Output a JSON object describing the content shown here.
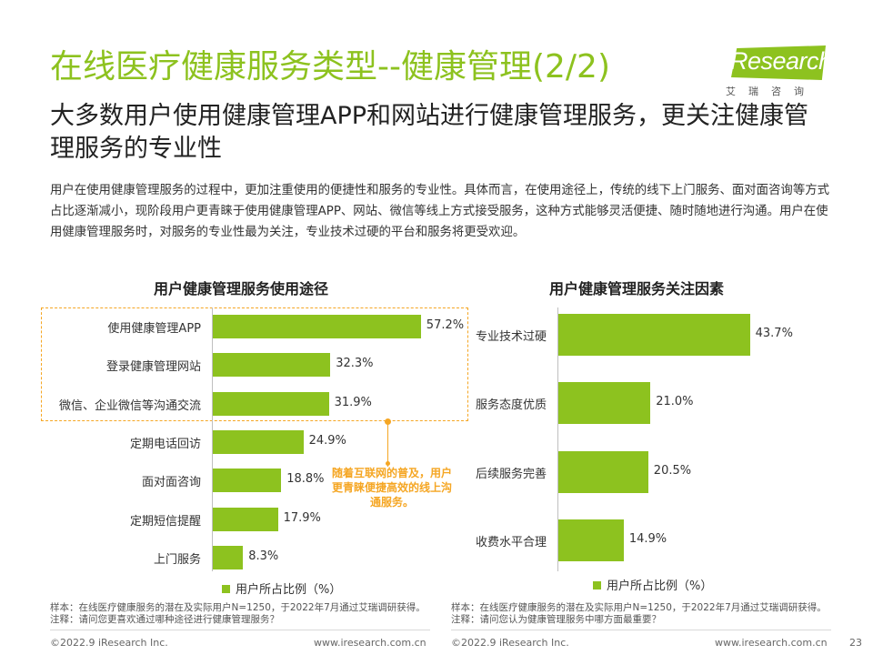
{
  "header": {
    "title": "在线医疗健康服务类型--健康管理(2/2)",
    "subtitle": "大多数用户使用健康管理APP和网站进行健康管理服务，更关注健康管理服务的专业性",
    "intro": "用户在使用健康管理服务的过程中，更加注重使用的便捷性和服务的专业性。具体而言，在使用途径上，传统的线下上门服务、面对面咨询等方式占比逐渐减小，现阶段用户更青睐于使用健康管理APP、网站、微信等线上方式接受服务，这种方式能够灵活便捷、随时随地进行沟通。用户在使用健康管理服务时，对服务的专业性最为关注，专业技术过硬的平台和服务将更受欢迎。"
  },
  "logo": {
    "text": "iResearch",
    "subtext": "艾瑞咨询"
  },
  "colors": {
    "accent": "#8dc21f",
    "annotation": "#f5a623"
  },
  "chart_data": [
    {
      "type": "bar",
      "orientation": "horizontal",
      "title": "用户健康管理服务使用途径",
      "categories": [
        "使用健康管理APP",
        "登录健康管理网站",
        "微信、企业微信等沟通交流",
        "定期电话回访",
        "面对面咨询",
        "定期短信提醒",
        "上门服务"
      ],
      "value_labels": [
        "57.2%",
        "32.3%",
        "31.9%",
        "24.9%",
        "18.8%",
        "17.9%",
        "8.3%"
      ],
      "series": [
        {
          "name": "用户所占比例（%）",
          "values": [
            57.2,
            32.3,
            31.9,
            24.9,
            18.8,
            17.9,
            8.3
          ]
        }
      ],
      "xlim": [
        0,
        60
      ],
      "legend": "bottom",
      "annotation": "随着互联网的普及，用户更青睐便捷高效的线上沟通服务。",
      "note_sample": "样本：在线医疗健康服务的潜在及实际用户N=1250，于2022年7月通过艾瑞调研获得。",
      "note_question": "注释：请问您更喜欢通过哪种途径进行健康管理服务？"
    },
    {
      "type": "bar",
      "orientation": "horizontal",
      "title": "用户健康管理服务关注因素",
      "categories": [
        "专业技术过硬",
        "服务态度优质",
        "后续服务完善",
        "收费水平合理"
      ],
      "value_labels": [
        "43.7%",
        "21.0%",
        "20.5%",
        "14.9%"
      ],
      "series": [
        {
          "name": "用户所占比例（%）",
          "values": [
            43.7,
            21.0,
            20.5,
            14.9
          ]
        }
      ],
      "xlim": [
        0,
        50
      ],
      "legend": "bottom",
      "note_sample": "样本：在线医疗健康服务的潜在及实际用户N=1250，于2022年7月通过艾瑞调研获得。",
      "note_question": "注释：请问您认为健康管理服务中哪方面最重要？"
    }
  ],
  "footer": {
    "copyright": "©2022.9 iResearch Inc.",
    "url": "www.iresearch.com.cn",
    "page_number": "23"
  }
}
